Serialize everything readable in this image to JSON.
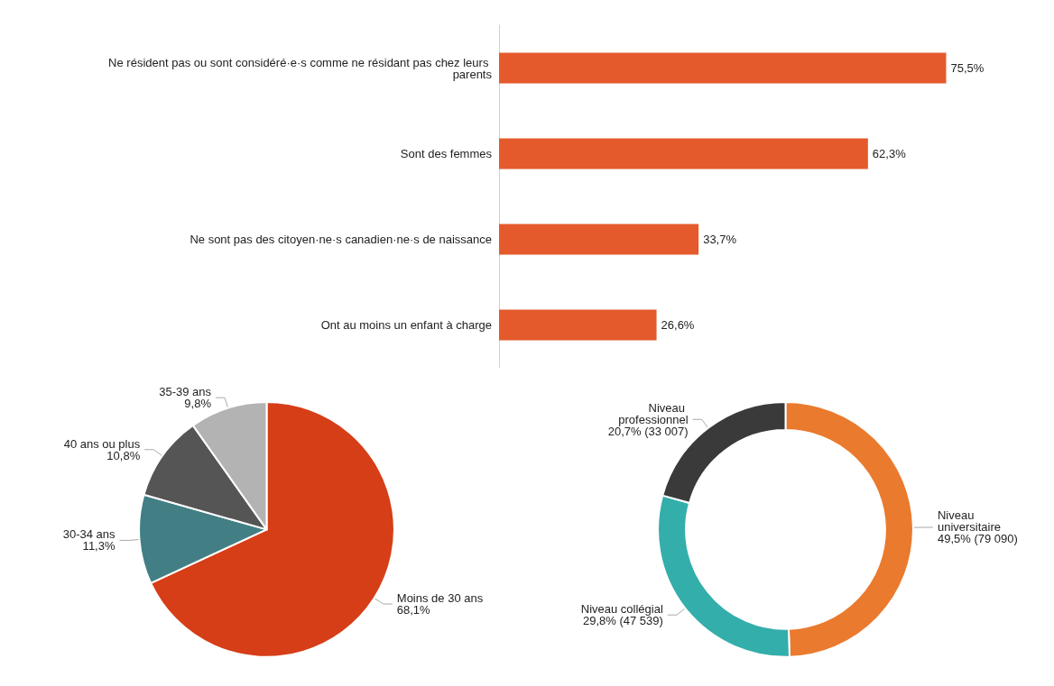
{
  "chart_data": [
    {
      "type": "bar",
      "orientation": "horizontal",
      "categories": [
        "Ne résident pas ou sont considéré·e·s comme ne résidant pas chez leurs parents",
        "Sont des femmes",
        "Ne sont pas des citoyen·ne·s canadien·ne·s de naissance",
        "Ont au moins un enfant à charge"
      ],
      "values": [
        75.5,
        62.3,
        33.7,
        26.6
      ],
      "value_labels": [
        "75,5%",
        "62,3%",
        "33,7%",
        "26,6%"
      ],
      "color": "#e45a2c"
    },
    {
      "type": "pie",
      "categories": [
        "Moins de 30 ans",
        "30-34 ans",
        "40 ans ou plus",
        "35-39 ans"
      ],
      "values": [
        68.1,
        11.3,
        10.8,
        9.8
      ],
      "value_labels": [
        "68,1%",
        "11,3%",
        "10,8%",
        "9,8%"
      ],
      "colors": [
        "#d63e17",
        "#427f84",
        "#555555",
        "#b3b3b3"
      ]
    },
    {
      "type": "donut",
      "categories": [
        "Niveau universitaire",
        "Niveau collégial",
        "Niveau professionnel"
      ],
      "values": [
        49.5,
        29.8,
        20.7
      ],
      "value_labels": [
        "49,5% (79 090)",
        "29,8% (47 539)",
        "20,7% (33 007)"
      ],
      "colors": [
        "#ea7a2e",
        "#33aeab",
        "#3a3a3a"
      ]
    }
  ]
}
